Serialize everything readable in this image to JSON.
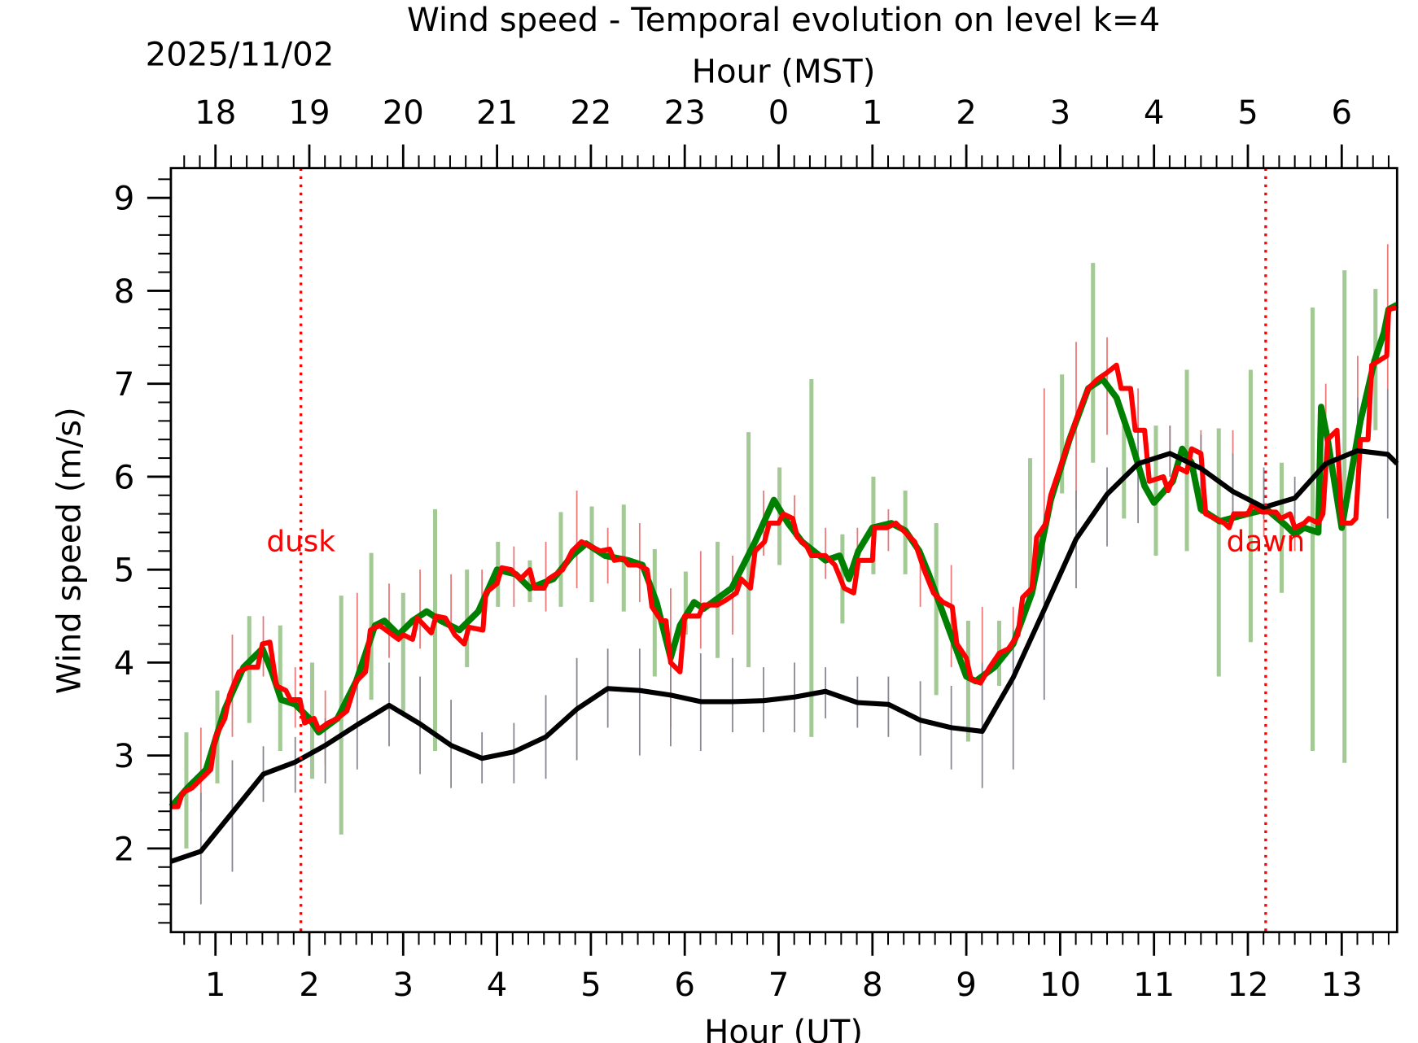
{
  "chart_data": {
    "type": "line",
    "title": "Wind speed - Temporal evolution on level k=4",
    "xlabel": "Hour (UT)",
    "x2label": "Hour (MST)",
    "date_label": "2025/11/02",
    "ylabel": "Wind speed (m/s)",
    "xlim": [
      0.525,
      13.59
    ],
    "ylim": [
      1.1,
      9.32
    ],
    "x_ticks": [
      1,
      2,
      3,
      4,
      5,
      6,
      7,
      8,
      9,
      10,
      11,
      12,
      13
    ],
    "x_tick_labels": [
      "1",
      "2",
      "3",
      "4",
      "5",
      "6",
      "7",
      "8",
      "9",
      "10",
      "11",
      "12",
      "13"
    ],
    "x2_tick_labels": [
      "18",
      "19",
      "20",
      "21",
      "22",
      "23",
      "0",
      "1",
      "2",
      "3",
      "4",
      "5",
      "6"
    ],
    "y_ticks": [
      2,
      3,
      4,
      5,
      6,
      7,
      8,
      9
    ],
    "y_tick_labels": [
      "2",
      "3",
      "4",
      "5",
      "6",
      "7",
      "8",
      "9"
    ],
    "grid": false,
    "annotations": [
      {
        "text": "dusk",
        "x": 1.91,
        "color": "#ff0000"
      },
      {
        "text": "dawn",
        "x": 12.19,
        "color": "#ff0000"
      }
    ],
    "series": [
      {
        "color": "#000000",
        "errorbar_color": "#888892",
        "x": [
          0.525,
          0.845,
          1.51,
          1.85,
          2.17,
          2.51,
          2.85,
          3.18,
          3.51,
          3.84,
          4.18,
          4.52,
          4.85,
          5.18,
          5.52,
          5.85,
          6.17,
          6.51,
          6.84,
          7.17,
          7.5,
          7.84,
          8.17,
          8.51,
          8.84,
          9.17,
          9.5,
          9.83,
          10.17,
          10.5,
          10.83,
          11.17,
          11.5,
          11.84,
          12.17,
          12.5,
          12.83,
          13.17,
          13.49,
          13.59
        ],
        "y": [
          1.86,
          1.97,
          2.8,
          2.93,
          3.11,
          3.33,
          3.54,
          3.34,
          3.11,
          2.97,
          3.04,
          3.2,
          3.5,
          3.72,
          3.7,
          3.65,
          3.58,
          3.58,
          3.59,
          3.63,
          3.69,
          3.57,
          3.55,
          3.38,
          3.3,
          3.26,
          3.84,
          4.57,
          5.33,
          5.81,
          6.14,
          6.25,
          6.09,
          5.84,
          5.67,
          5.77,
          6.14,
          6.28,
          6.24,
          6.14
        ],
        "errorbars": {
          "x": [
            0.845,
            1.18,
            1.51,
            1.85,
            2.17,
            2.51,
            2.85,
            3.18,
            3.51,
            3.84,
            4.18,
            4.52,
            4.85,
            5.18,
            5.52,
            5.85,
            6.17,
            6.51,
            6.84,
            7.17,
            7.5,
            7.84,
            8.17,
            8.51,
            8.84,
            9.17,
            9.5,
            9.83,
            10.17,
            10.5,
            10.83,
            11.17,
            11.5,
            11.84,
            12.17,
            12.5,
            12.83,
            13.17,
            13.49
          ],
          "low": [
            1.4,
            1.75,
            2.5,
            2.6,
            2.7,
            2.85,
            3.1,
            2.8,
            2.65,
            2.7,
            2.7,
            2.75,
            2.95,
            3.3,
            3.0,
            3.1,
            3.05,
            3.25,
            3.25,
            3.25,
            3.4,
            3.3,
            3.2,
            3.0,
            2.85,
            2.65,
            2.85,
            3.6,
            4.8,
            5.25,
            5.5,
            6.0,
            5.85,
            5.6,
            5.55,
            5.55,
            5.75,
            5.8,
            5.55
          ],
          "high": [
            2.6,
            2.95,
            3.1,
            3.2,
            3.4,
            3.9,
            4.0,
            3.85,
            3.6,
            3.25,
            3.35,
            3.65,
            4.05,
            4.15,
            4.15,
            4.0,
            4.1,
            4.05,
            3.95,
            4.0,
            3.95,
            3.85,
            3.85,
            3.8,
            3.75,
            4.0,
            4.35,
            5.6,
            5.85,
            6.1,
            6.55,
            6.55,
            6.45,
            6.25,
            6.1,
            6.0,
            6.45,
            6.85,
            6.95
          ]
        }
      },
      {
        "color": "#008000",
        "errorbar_color": "#a3c994",
        "x": [
          0.53,
          0.7,
          0.9,
          1.1,
          1.3,
          1.5,
          1.6,
          1.7,
          1.85,
          2.0,
          2.1,
          2.3,
          2.5,
          2.7,
          2.8,
          2.95,
          3.1,
          3.25,
          3.4,
          3.6,
          3.8,
          4.0,
          4.2,
          4.35,
          4.6,
          4.8,
          4.95,
          5.15,
          5.4,
          5.55,
          5.7,
          5.85,
          5.95,
          6.1,
          6.2,
          6.5,
          6.75,
          6.95,
          7.1,
          7.25,
          7.5,
          7.65,
          7.75,
          7.85,
          8.0,
          8.2,
          8.35,
          8.5,
          8.6,
          8.8,
          9.0,
          9.1,
          9.3,
          9.5,
          9.7,
          9.9,
          10.1,
          10.3,
          10.45,
          10.6,
          10.75,
          10.9,
          11.0,
          11.2,
          11.3,
          11.4,
          11.5,
          11.7,
          12.0,
          12.2,
          12.4,
          12.5,
          12.6,
          12.75,
          12.78,
          12.85,
          13.0,
          13.2,
          13.35,
          13.45,
          13.5,
          13.59
        ],
        "y": [
          2.45,
          2.65,
          2.85,
          3.5,
          3.95,
          4.15,
          3.9,
          3.6,
          3.55,
          3.4,
          3.25,
          3.4,
          3.8,
          4.4,
          4.45,
          4.3,
          4.45,
          4.55,
          4.45,
          4.35,
          4.55,
          5.0,
          4.95,
          4.8,
          4.9,
          5.15,
          5.28,
          5.15,
          5.1,
          5.05,
          4.65,
          4.05,
          4.4,
          4.65,
          4.58,
          4.8,
          5.3,
          5.75,
          5.5,
          5.3,
          5.1,
          5.15,
          4.9,
          5.2,
          5.45,
          5.5,
          5.42,
          5.2,
          4.95,
          4.4,
          3.85,
          3.8,
          3.95,
          4.2,
          4.75,
          5.75,
          6.4,
          6.95,
          7.05,
          6.85,
          6.4,
          5.9,
          5.72,
          5.95,
          6.3,
          6.15,
          5.65,
          5.52,
          5.6,
          5.65,
          5.48,
          5.38,
          5.45,
          5.4,
          6.75,
          6.4,
          5.45,
          6.6,
          7.25,
          7.55,
          7.8,
          7.85
        ],
        "errorbars": {
          "x": [
            0.69,
            1.02,
            1.36,
            1.69,
            2.03,
            2.34,
            2.66,
            3.0,
            3.34,
            3.68,
            4.01,
            4.35,
            4.68,
            5.01,
            5.35,
            5.68,
            6.01,
            6.35,
            6.68,
            7.01,
            7.35,
            7.68,
            8.01,
            8.35,
            8.68,
            9.02,
            9.35,
            9.68,
            10.02,
            10.35,
            10.68,
            11.02,
            11.35,
            11.69,
            12.03,
            12.36,
            12.69,
            13.03,
            13.36
          ],
          "low": [
            2.0,
            2.7,
            3.35,
            3.05,
            2.75,
            2.15,
            3.6,
            3.45,
            3.05,
            3.95,
            4.6,
            4.65,
            4.6,
            4.65,
            4.55,
            3.85,
            4.3,
            4.05,
            3.95,
            5.05,
            3.2,
            4.42,
            4.95,
            4.95,
            3.65,
            3.15,
            3.75,
            4.75,
            5.82,
            6.15,
            5.55,
            5.15,
            5.2,
            3.85,
            4.22,
            4.75,
            3.05,
            2.92,
            6.5
          ],
          "high": [
            3.25,
            3.7,
            4.5,
            4.4,
            4.0,
            4.72,
            5.18,
            4.75,
            5.65,
            5.0,
            5.3,
            5.1,
            5.62,
            5.68,
            5.7,
            5.22,
            4.98,
            5.3,
            6.48,
            6.1,
            7.05,
            5.38,
            6.0,
            5.85,
            5.5,
            4.45,
            4.45,
            6.2,
            7.1,
            8.3,
            6.55,
            6.55,
            7.15,
            6.52,
            7.15,
            6.15,
            7.82,
            8.22,
            8.02
          ]
        }
      },
      {
        "color": "#ff0000",
        "errorbar_color": "#e87a7a",
        "x": [
          0.53,
          0.6,
          0.65,
          0.75,
          0.85,
          0.95,
          1.0,
          1.1,
          1.15,
          1.25,
          1.35,
          1.45,
          1.5,
          1.58,
          1.65,
          1.75,
          1.8,
          1.9,
          1.95,
          2.05,
          2.1,
          2.2,
          2.3,
          2.4,
          2.5,
          2.6,
          2.65,
          2.75,
          2.95,
          3.0,
          3.1,
          3.15,
          3.3,
          3.35,
          3.45,
          3.55,
          3.65,
          3.7,
          3.85,
          3.88,
          4.0,
          4.05,
          4.15,
          4.25,
          4.35,
          4.4,
          4.5,
          4.55,
          4.7,
          4.8,
          4.9,
          5.0,
          5.1,
          5.2,
          5.25,
          5.35,
          5.4,
          5.5,
          5.6,
          5.65,
          5.75,
          5.8,
          5.85,
          5.95,
          6.0,
          6.15,
          6.2,
          6.35,
          6.45,
          6.55,
          6.6,
          6.7,
          6.75,
          6.85,
          6.9,
          7.0,
          7.05,
          7.15,
          7.2,
          7.3,
          7.35,
          7.5,
          7.6,
          7.7,
          7.8,
          7.85,
          8.0,
          8.02,
          8.15,
          8.25,
          8.35,
          8.45,
          8.55,
          8.65,
          8.75,
          8.85,
          8.9,
          9.0,
          9.05,
          9.15,
          9.25,
          9.35,
          9.45,
          9.55,
          9.6,
          9.7,
          9.75,
          9.85,
          9.9,
          10.0,
          10.1,
          10.2,
          10.3,
          10.4,
          10.5,
          10.6,
          10.65,
          10.75,
          10.8,
          10.9,
          10.95,
          11.1,
          11.15,
          11.25,
          11.35,
          11.4,
          11.5,
          11.55,
          11.65,
          11.75,
          11.8,
          11.85,
          12.0,
          12.05,
          12.15,
          12.3,
          12.35,
          12.45,
          12.5,
          12.6,
          12.65,
          12.75,
          12.8,
          12.85,
          12.95,
          13.0,
          13.1,
          13.15,
          13.2,
          13.28,
          13.32,
          13.4,
          13.48,
          13.5,
          13.59
        ],
        "y": [
          2.45,
          2.45,
          2.6,
          2.65,
          2.75,
          2.85,
          3.2,
          3.4,
          3.65,
          3.9,
          3.95,
          3.95,
          4.2,
          4.22,
          3.75,
          3.7,
          3.6,
          3.6,
          3.35,
          3.4,
          3.28,
          3.35,
          3.4,
          3.48,
          3.8,
          3.9,
          4.35,
          4.4,
          4.25,
          4.3,
          4.25,
          4.48,
          4.32,
          4.5,
          4.48,
          4.3,
          4.2,
          4.38,
          4.35,
          4.75,
          4.85,
          5.02,
          5.0,
          4.9,
          5.0,
          4.8,
          4.8,
          4.9,
          5.0,
          5.2,
          5.3,
          5.25,
          5.2,
          5.22,
          5.1,
          5.12,
          5.05,
          5.05,
          5.0,
          4.6,
          4.45,
          4.45,
          4.0,
          3.9,
          4.5,
          4.5,
          4.62,
          4.62,
          4.68,
          4.75,
          4.9,
          4.8,
          5.2,
          5.3,
          5.5,
          5.5,
          5.6,
          5.55,
          5.35,
          5.25,
          5.15,
          5.15,
          5.05,
          4.8,
          4.75,
          5.1,
          5.1,
          5.45,
          5.45,
          5.5,
          5.4,
          5.3,
          5.0,
          4.75,
          4.65,
          4.6,
          4.2,
          4.05,
          3.82,
          3.78,
          3.95,
          4.1,
          4.15,
          4.3,
          4.7,
          4.8,
          5.35,
          5.5,
          5.8,
          6.1,
          6.4,
          6.7,
          6.95,
          7.05,
          7.12,
          7.2,
          6.95,
          6.95,
          6.5,
          6.5,
          5.95,
          6.0,
          5.85,
          6.1,
          6.05,
          6.3,
          6.25,
          5.6,
          5.55,
          5.5,
          5.45,
          5.6,
          5.6,
          5.7,
          5.62,
          5.62,
          5.55,
          5.6,
          5.45,
          5.5,
          5.55,
          5.5,
          5.6,
          6.4,
          6.5,
          5.5,
          5.5,
          5.55,
          6.4,
          6.4,
          7.2,
          7.25,
          7.3,
          7.8,
          7.82
        ],
        "errorbars": {
          "x": [
            0.845,
            1.18,
            1.51,
            1.85,
            2.17,
            2.51,
            2.85,
            3.18,
            3.51,
            3.84,
            4.18,
            4.52,
            4.85,
            5.18,
            5.52,
            5.85,
            6.17,
            6.51,
            6.84,
            7.17,
            7.5,
            7.84,
            8.17,
            8.51,
            8.84,
            9.17,
            9.5,
            9.83,
            10.17,
            10.5,
            10.83,
            11.17,
            11.5,
            11.84,
            12.17,
            12.5,
            12.83,
            13.17,
            13.49
          ],
          "low": [
            2.4,
            3.2,
            3.85,
            3.3,
            2.9,
            3.7,
            4.05,
            4.15,
            4.35,
            4.45,
            4.6,
            4.55,
            4.8,
            4.85,
            4.65,
            3.3,
            4.15,
            4.3,
            5.15,
            5.35,
            4.9,
            4.9,
            5.2,
            4.6,
            3.95,
            3.35,
            3.95,
            4.6,
            5.65,
            6.45,
            6.35,
            6.05,
            5.6,
            5.6,
            5.35,
            5.2,
            5.9,
            6.2,
            6.95
          ],
          "high": [
            3.3,
            4.3,
            4.5,
            3.95,
            3.7,
            4.75,
            4.85,
            5.0,
            4.95,
            5.0,
            5.25,
            5.3,
            5.85,
            5.45,
            5.5,
            4.8,
            5.2,
            5.15,
            5.85,
            5.8,
            5.45,
            5.45,
            5.65,
            5.15,
            5.05,
            4.6,
            4.6,
            6.95,
            7.45,
            7.5,
            6.95,
            6.55,
            6.5,
            6.5,
            6.0,
            5.8,
            7.0,
            7.3,
            8.5
          ]
        }
      }
    ]
  }
}
